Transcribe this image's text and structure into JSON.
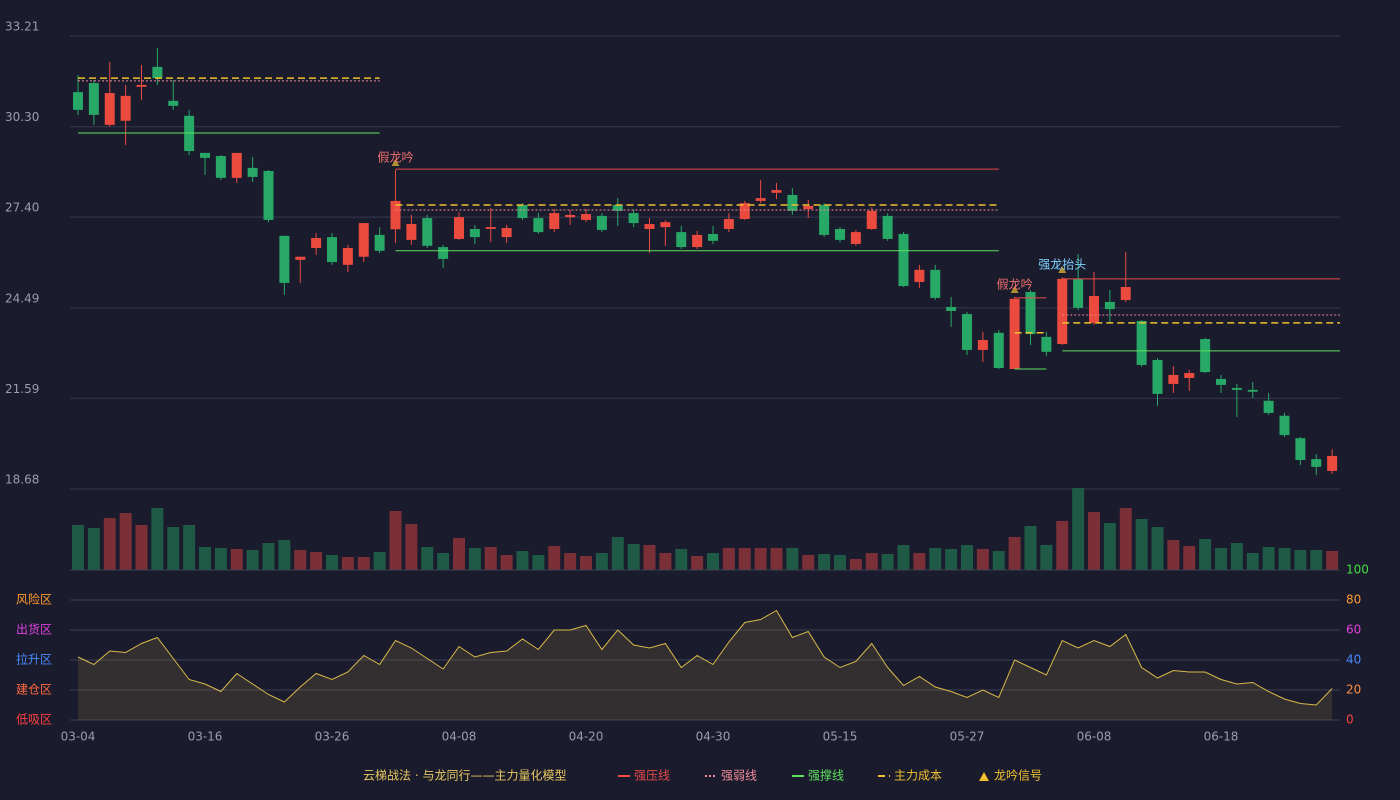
{
  "chart_data": [
    {
      "type": "candlestick",
      "categories": [
        "03-04",
        null,
        null,
        null,
        null,
        null,
        null,
        null,
        "03-16",
        null,
        null,
        null,
        null,
        null,
        null,
        null,
        "03-26",
        null,
        null,
        null,
        null,
        null,
        null,
        null,
        "04-08",
        null,
        null,
        null,
        null,
        null,
        null,
        null,
        "04-20",
        null,
        null,
        null,
        null,
        null,
        null,
        null,
        "04-30",
        null,
        null,
        null,
        null,
        null,
        null,
        null,
        "05-15",
        null,
        null,
        null,
        null,
        null,
        null,
        null,
        "05-27",
        null,
        null,
        null,
        null,
        null,
        null,
        null,
        "06-08",
        null,
        null,
        null,
        null,
        null,
        null,
        null,
        "06-18",
        null,
        null,
        null,
        null,
        null,
        null,
        null
      ],
      "open": [
        31.41,
        31.7,
        30.36,
        30.49,
        31.58,
        32.22,
        31.13,
        30.65,
        29.46,
        29.36,
        28.66,
        28.98,
        28.88,
        26.8,
        26.03,
        26.41,
        26.76,
        25.87,
        26.13,
        26.83,
        27.01,
        26.67,
        27.37,
        26.44,
        26.7,
        27.02,
        27.02,
        26.76,
        27.79,
        27.37,
        27.02,
        27.4,
        27.31,
        27.44,
        27.79,
        27.53,
        27.02,
        27.08,
        26.92,
        26.44,
        26.86,
        27.02,
        27.34,
        27.92,
        28.18,
        28.11,
        27.66,
        27.79,
        27.02,
        26.54,
        27.02,
        27.44,
        26.86,
        25.32,
        25.71,
        24.52,
        24.29,
        23.14,
        23.69,
        22.53,
        25.0,
        23.56,
        23.33,
        25.42,
        24.01,
        24.68,
        24.74,
        24.07,
        22.82,
        22.05,
        22.24,
        23.49,
        22.21,
        21.92,
        21.86,
        21.51,
        21.03,
        20.31,
        19.64,
        19.26
      ],
      "high": [
        31.96,
        31.8,
        32.38,
        31.64,
        32.28,
        32.83,
        31.8,
        30.84,
        29.46,
        29.39,
        29.46,
        29.33,
        28.91,
        26.8,
        26.13,
        26.89,
        26.89,
        26.51,
        27.21,
        27.08,
        28.91,
        27.47,
        27.47,
        26.51,
        27.56,
        27.15,
        27.69,
        27.15,
        27.85,
        27.53,
        27.66,
        27.63,
        27.66,
        27.53,
        28.01,
        27.66,
        27.37,
        27.31,
        27.12,
        26.96,
        27.12,
        27.53,
        27.92,
        28.59,
        28.5,
        28.33,
        27.95,
        27.85,
        27.08,
        26.99,
        27.72,
        27.53,
        26.92,
        25.87,
        25.87,
        24.84,
        24.36,
        23.72,
        23.78,
        24.84,
        25.06,
        23.72,
        25.48,
        26.22,
        25.64,
        25.06,
        26.28,
        24.1,
        22.88,
        22.62,
        22.5,
        23.53,
        22.34,
        22.05,
        22.11,
        21.76,
        21.12,
        20.35,
        19.8,
        19.96
      ],
      "low": [
        30.68,
        30.36,
        30.3,
        29.71,
        31.16,
        31.64,
        30.84,
        29.39,
        28.75,
        28.59,
        28.5,
        28.53,
        27.24,
        24.9,
        25.29,
        26.19,
        25.87,
        25.64,
        25.96,
        26.25,
        26.57,
        26.51,
        26.41,
        25.77,
        26.67,
        26.54,
        26.6,
        26.57,
        27.31,
        26.86,
        26.92,
        27.15,
        27.24,
        26.92,
        27.12,
        27.08,
        26.25,
        26.48,
        26.38,
        26.38,
        26.54,
        26.92,
        27.31,
        27.85,
        27.98,
        27.47,
        27.37,
        26.76,
        26.6,
        26.48,
        26.99,
        26.64,
        25.16,
        25.13,
        24.74,
        23.88,
        22.98,
        22.75,
        22.53,
        22.53,
        23.3,
        22.95,
        23.3,
        24.42,
        23.94,
        24.01,
        24.68,
        22.6,
        21.35,
        21.76,
        21.83,
        22.4,
        21.76,
        20.99,
        21.6,
        21.06,
        20.35,
        19.45,
        19.13,
        19.16
      ],
      "close": [
        30.84,
        30.68,
        31.38,
        31.29,
        31.64,
        31.86,
        30.97,
        29.52,
        29.3,
        28.66,
        29.46,
        28.69,
        27.31,
        25.29,
        26.13,
        26.73,
        25.96,
        26.41,
        27.21,
        26.32,
        27.92,
        27.18,
        26.48,
        26.06,
        27.4,
        26.76,
        27.08,
        27.05,
        27.37,
        26.92,
        27.53,
        27.47,
        27.5,
        26.99,
        27.6,
        27.21,
        27.18,
        27.24,
        26.44,
        26.83,
        26.64,
        27.34,
        27.85,
        28.01,
        28.27,
        27.6,
        27.76,
        26.83,
        26.67,
        26.92,
        27.6,
        26.7,
        25.19,
        25.71,
        24.81,
        24.39,
        23.14,
        23.46,
        22.56,
        24.78,
        23.65,
        23.08,
        25.42,
        24.49,
        24.87,
        24.45,
        25.16,
        22.66,
        21.73,
        22.34,
        22.4,
        22.43,
        22.02,
        21.86,
        21.8,
        21.12,
        20.41,
        19.61,
        19.39,
        19.74
      ],
      "up_color": "#eb4a3f",
      "down_color": "#27a866",
      "ylim": [
        18.68,
        33.21
      ],
      "yticks": [
        33.21,
        {
          "value": 30.3,
          "label": "30.30"
        },
        {
          "value": 27.4,
          "label": "27.40"
        },
        24.49,
        21.59,
        18.68
      ],
      "grid": true,
      "levels": [
        {
          "name": "强压线",
          "color": "#e84a4a",
          "style": "solid",
          "segments": [
            {
              "from": 20,
              "to": 58,
              "value": 28.94
            },
            {
              "from": 59,
              "to": 61,
              "value": 24.81
            },
            {
              "from": 62,
              "to": 79,
              "value": 25.42
            }
          ]
        },
        {
          "name": "强弱线",
          "color": "#f08a9a",
          "style": "dotted",
          "segments": [
            {
              "from": 0,
              "to": 19,
              "value": 31.77
            },
            {
              "from": 20,
              "to": 58,
              "value": 27.63
            },
            {
              "from": 62,
              "to": 79,
              "value": 24.26
            }
          ]
        },
        {
          "name": "强撑线",
          "color": "#5ee05e",
          "style": "solid",
          "segments": [
            {
              "from": 0,
              "to": 19,
              "value": 30.1
            },
            {
              "from": 20,
              "to": 58,
              "value": 26.32
            },
            {
              "from": 59,
              "to": 61,
              "value": 22.53
            },
            {
              "from": 62,
              "to": 79,
              "value": 23.11
            }
          ]
        },
        {
          "name": "主力成本",
          "color": "#f0c030",
          "style": "dashed",
          "segments": [
            {
              "from": 0,
              "to": 19,
              "value": 31.86
            },
            {
              "from": 20,
              "to": 58,
              "value": 27.79
            },
            {
              "from": 59,
              "to": 61,
              "value": 23.69
            },
            {
              "from": 62,
              "to": 79,
              "value": 24.01
            }
          ]
        }
      ],
      "signals": [
        {
          "at": 20,
          "label": "假龙吟",
          "color": "#f07070"
        },
        {
          "at": 59,
          "label": "假龙吟",
          "color": "#f07070"
        },
        {
          "at": 62,
          "label": "强龙抬头",
          "color": "#7fd0ff"
        }
      ],
      "signal_legend": {
        "label": "龙吟信号",
        "color": "#f0c030"
      },
      "legend_title": "云梯战法 · 与龙同行——主力量化模型"
    },
    {
      "type": "volume",
      "values": [
        45,
        42,
        52,
        57,
        45,
        62,
        43,
        45,
        23,
        22,
        21,
        20,
        27,
        30,
        20,
        18,
        15,
        13,
        13,
        18,
        59,
        46,
        23,
        17,
        32,
        22,
        23,
        15,
        19,
        15,
        24,
        17,
        14,
        17,
        33,
        26,
        25,
        17,
        21,
        14,
        17,
        22,
        22,
        22,
        22,
        22,
        15,
        16,
        15,
        11,
        17,
        16,
        25,
        17,
        22,
        21,
        25,
        21,
        19,
        33,
        44,
        25,
        49,
        82,
        58,
        47,
        62,
        51,
        43,
        30,
        24,
        31,
        22,
        27,
        17,
        23,
        22,
        20,
        20,
        19
      ],
      "up_color": "#7a3036",
      "down_color": "#1e5a45"
    },
    {
      "type": "line",
      "values": [
        42,
        37,
        46,
        45,
        51,
        55,
        41,
        27,
        24,
        19,
        31,
        24,
        17,
        12,
        22,
        31,
        27,
        32,
        43,
        37,
        53,
        48,
        41,
        34,
        49,
        42,
        45,
        46,
        54,
        47,
        60,
        60,
        63,
        47,
        60,
        50,
        48,
        51,
        35,
        43,
        37,
        52,
        65,
        67,
        73,
        55,
        59,
        42,
        35,
        39,
        51,
        35,
        23,
        29,
        22,
        19,
        15,
        20,
        15,
        40,
        35,
        30,
        53,
        48,
        53,
        49,
        57,
        35,
        28,
        33,
        32,
        32,
        27,
        24,
        25,
        19,
        14,
        11,
        10,
        21
      ],
      "color": "#d9b94a",
      "ylim": [
        0,
        100
      ],
      "yticks": [
        0,
        20,
        40,
        60,
        80,
        100
      ],
      "ytick_colors": [
        "#ff4040",
        "#ff8c40",
        "#4a8cff",
        "#e040e0",
        "#ff9a30",
        "#40e040"
      ],
      "zones": [
        {
          "label": "风险区",
          "value": 80,
          "color": "#ff9a30"
        },
        {
          "label": "出货区",
          "value": 60,
          "color": "#e040e0"
        },
        {
          "label": "拉升区",
          "value": 40,
          "color": "#4a8cff"
        },
        {
          "label": "建仓区",
          "value": 20,
          "color": "#ff6a40"
        },
        {
          "label": "低吸区",
          "value": 0,
          "color": "#ff4040"
        }
      ]
    }
  ]
}
